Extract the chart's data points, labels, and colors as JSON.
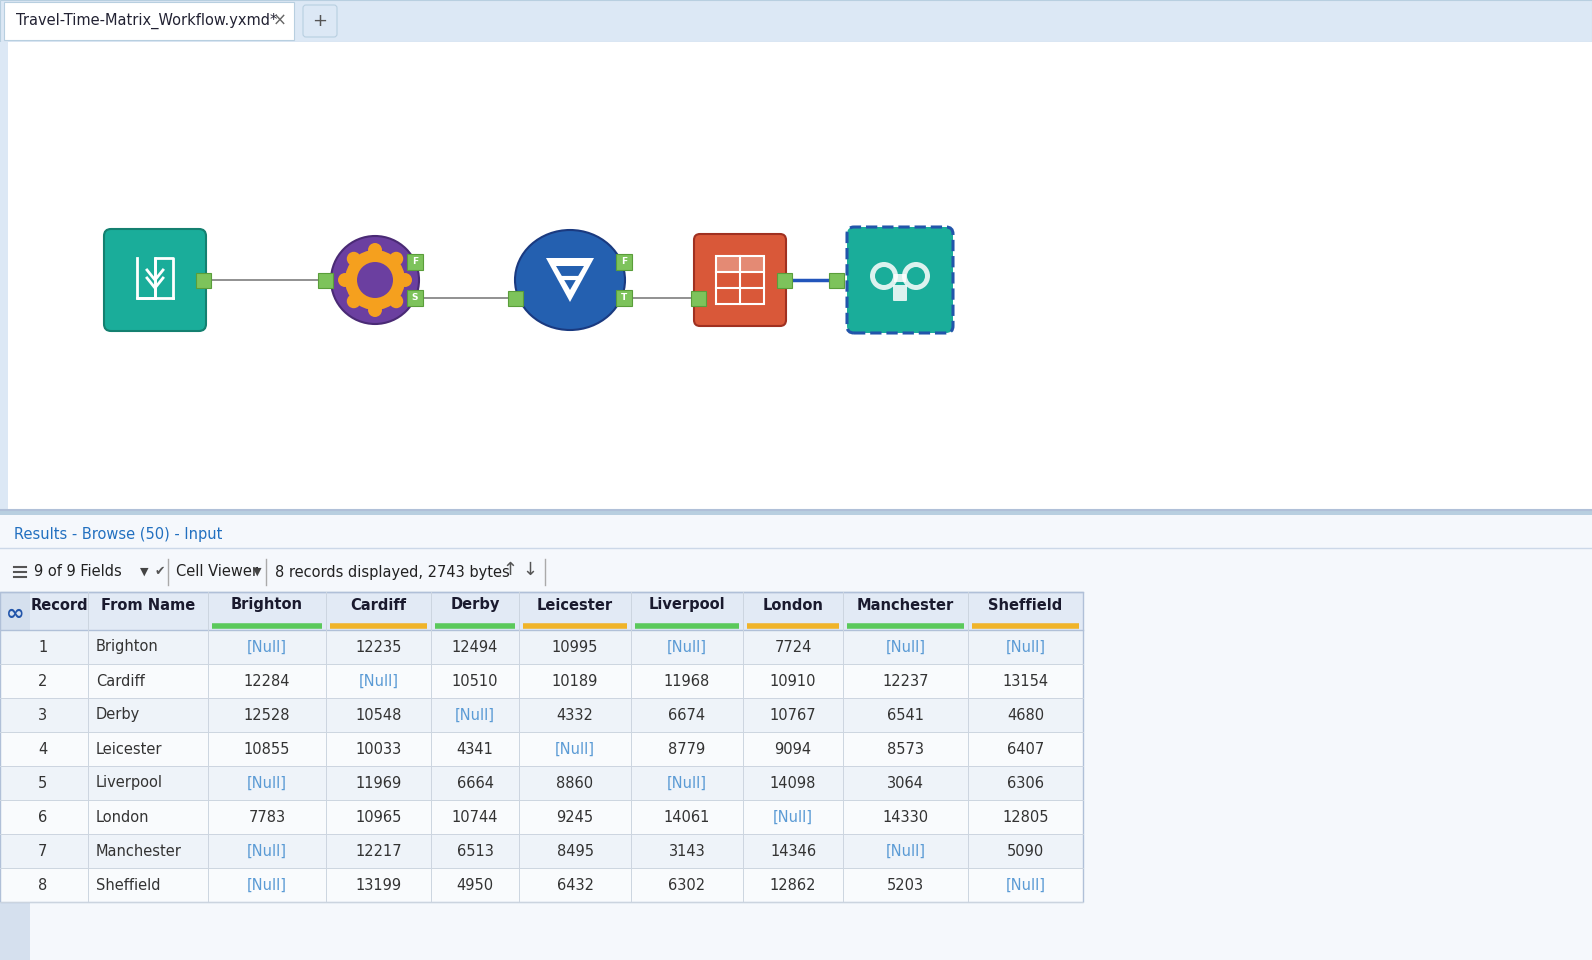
{
  "tab_title": "Travel-Time-Matrix_Workflow.yxmd*",
  "results_label": "Results - Browse (50) - Input",
  "toolbar_text": "9 of 9 Fields",
  "cell_viewer_text": "Cell Viewer",
  "records_text": "8 records displayed, 2743 bytes",
  "columns": [
    "Record",
    "From Name",
    "Brighton",
    "Cardiff",
    "Derby",
    "Leicester",
    "Liverpool",
    "London",
    "Manchester",
    "Sheffield"
  ],
  "col_indicator": [
    "none",
    "none",
    "#5bc95b",
    "#f0b429",
    "#5bc95b",
    "#f0b429",
    "#5bc95b",
    "#f0b429",
    "#5bc95b",
    "#f0b429"
  ],
  "rows": [
    [
      "1",
      "Brighton",
      "[Null]",
      "12235",
      "12494",
      "10995",
      "[Null]",
      "7724",
      "[Null]",
      "[Null]"
    ],
    [
      "2",
      "Cardiff",
      "12284",
      "[Null]",
      "10510",
      "10189",
      "11968",
      "10910",
      "12237",
      "13154"
    ],
    [
      "3",
      "Derby",
      "12528",
      "10548",
      "[Null]",
      "4332",
      "6674",
      "10767",
      "6541",
      "4680"
    ],
    [
      "4",
      "Leicester",
      "10855",
      "10033",
      "4341",
      "[Null]",
      "8779",
      "9094",
      "8573",
      "6407"
    ],
    [
      "5",
      "Liverpool",
      "[Null]",
      "11969",
      "6664",
      "8860",
      "[Null]",
      "14098",
      "3064",
      "6306"
    ],
    [
      "6",
      "London",
      "7783",
      "10965",
      "10744",
      "9245",
      "14061",
      "[Null]",
      "14330",
      "12805"
    ],
    [
      "7",
      "Manchester",
      "[Null]",
      "12217",
      "6513",
      "8495",
      "3143",
      "14346",
      "[Null]",
      "5090"
    ],
    [
      "8",
      "Sheffield",
      "[Null]",
      "13199",
      "4950",
      "6432",
      "6302",
      "12862",
      "5203",
      "[Null]"
    ]
  ],
  "workflow_bg": "#ffffff",
  "bottom_panel_bg": "#f5f8fc",
  "tab_bar_bg": "#dce8f5",
  "table_header_bg": "#e2eaf5",
  "table_row_odd": "#eef3f9",
  "table_row_even": "#f9fbfd",
  "null_color": "#5b9bd5",
  "text_color": "#333333",
  "header_text_color": "#1a1a2e",
  "results_label_color": "#2270c0",
  "node1_color": "#1aad9a",
  "node2_gear_color": "#f5a01e",
  "node2_bg_color": "#6b3fa0",
  "node3_color": "#2460b0",
  "node4_color": "#d95839",
  "node5_color": "#1aad9a",
  "connector_color": "#888888",
  "connector_sq_color": "#7dc35b",
  "blue_line_color": "#2255bb"
}
